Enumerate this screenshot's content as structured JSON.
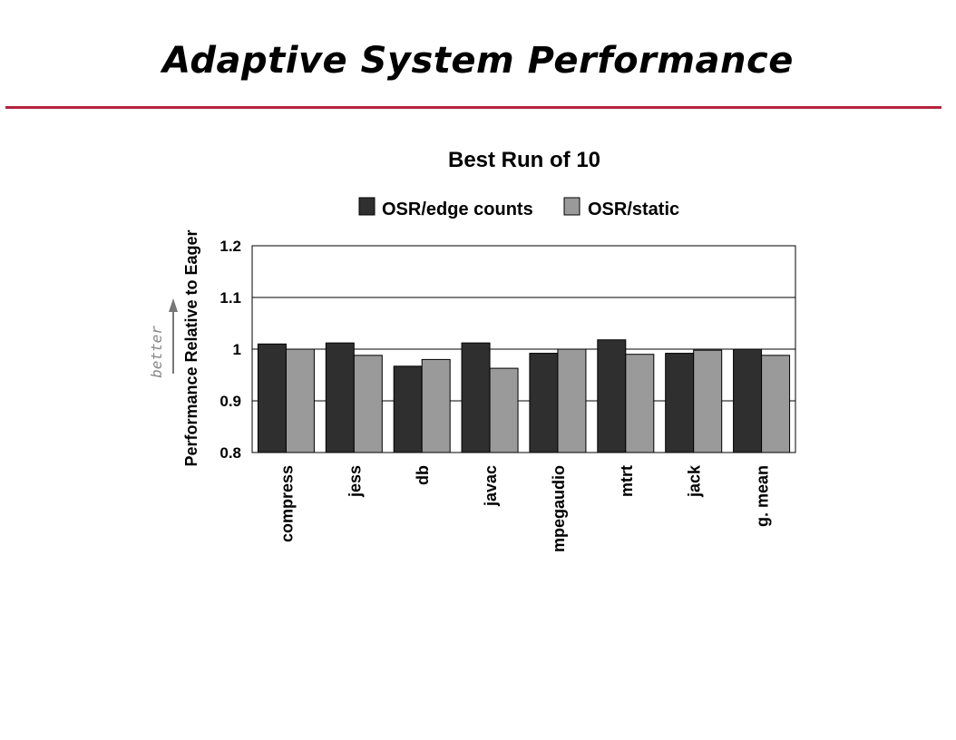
{
  "slide": {
    "title": "Adaptive System Performance"
  },
  "colors": {
    "rule": "#b5233d",
    "series1": "#2f2f2f",
    "series2": "#9a9a9a"
  },
  "chart_data": {
    "type": "bar",
    "title": "Best Run of 10",
    "ylabel": "Performance Relative to Eager",
    "xlabel": "",
    "ylim": [
      0.8,
      1.2
    ],
    "yticks": [
      "0.8",
      "0.9",
      "1",
      "1.1",
      "1.2"
    ],
    "grid": true,
    "legend": "top",
    "annotation": "better",
    "categories": [
      "compress",
      "jess",
      "db",
      "javac",
      "mpegaudio",
      "mtrt",
      "jack",
      "g. mean"
    ],
    "series": [
      {
        "name": "OSR/edge counts",
        "values": [
          1.01,
          1.012,
          0.967,
          1.012,
          0.992,
          1.018,
          0.992,
          1.0
        ]
      },
      {
        "name": "OSR/static",
        "values": [
          1.0,
          0.988,
          0.98,
          0.963,
          1.0,
          0.99,
          0.998,
          0.988
        ]
      }
    ]
  }
}
